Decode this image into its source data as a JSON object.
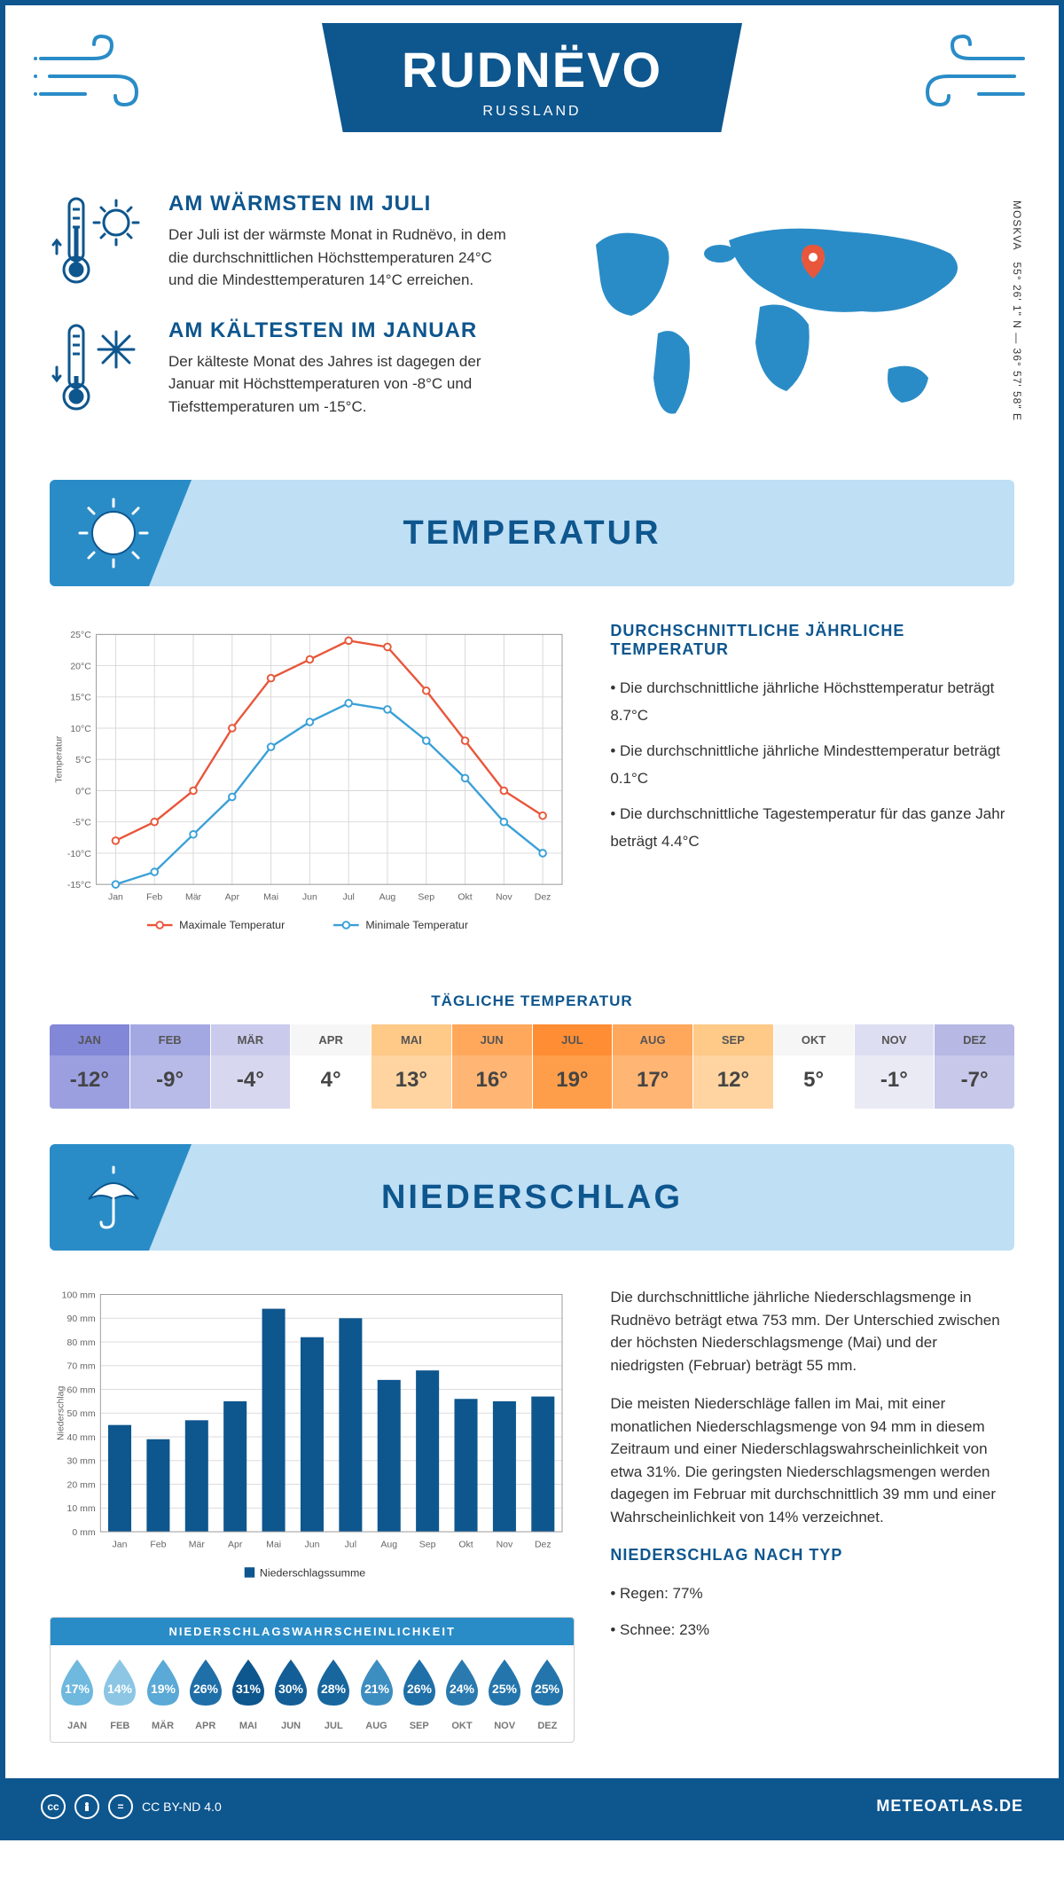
{
  "header": {
    "title": "RUDNËVO",
    "subtitle": "RUSSLAND"
  },
  "coords": {
    "text": "55° 26' 1\" N — 36° 57' 58\" E",
    "region": "MOSKVA"
  },
  "facts": {
    "warm": {
      "title": "AM WÄRMSTEN IM JULI",
      "text": "Der Juli ist der wärmste Monat in Rudnëvo, in dem die durchschnittlichen Höchsttemperaturen 24°C und die Mindesttemperaturen 14°C erreichen."
    },
    "cold": {
      "title": "AM KÄLTESTEN IM JANUAR",
      "text": "Der kälteste Monat des Jahres ist dagegen der Januar mit Höchsttemperaturen von -8°C und Tiefsttemperaturen um -15°C."
    }
  },
  "temp_section": {
    "banner": "TEMPERATUR",
    "chart": {
      "type": "line",
      "months": [
        "Jan",
        "Feb",
        "Mär",
        "Apr",
        "Mai",
        "Jun",
        "Jul",
        "Aug",
        "Sep",
        "Okt",
        "Nov",
        "Dez"
      ],
      "max_series": {
        "label": "Maximale Temperatur",
        "color": "#e8563b",
        "values": [
          -8,
          -5,
          0,
          10,
          18,
          21,
          24,
          23,
          16,
          8,
          0,
          -4
        ]
      },
      "min_series": {
        "label": "Minimale Temperatur",
        "color": "#3aa0d8",
        "values": [
          -15,
          -13,
          -7,
          -1,
          7,
          11,
          14,
          13,
          8,
          2,
          -5,
          -10
        ]
      },
      "ylim": [
        -15,
        25
      ],
      "ytick_step": 5,
      "ylabel": "Temperatur",
      "grid_color": "#d8d8d8",
      "background": "#ffffff",
      "marker": "circle",
      "marker_size": 4
    },
    "text": {
      "title": "DURCHSCHNITTLICHE JÄHRLICHE TEMPERATUR",
      "bullets": [
        "• Die durchschnittliche jährliche Höchsttemperatur beträgt 8.7°C",
        "• Die durchschnittliche jährliche Mindesttemperatur beträgt 0.1°C",
        "• Die durchschnittliche Tagestemperatur für das ganze Jahr beträgt 4.4°C"
      ]
    }
  },
  "daily_temp": {
    "title": "TÄGLICHE TEMPERATUR",
    "months": [
      "JAN",
      "FEB",
      "MÄR",
      "APR",
      "MAI",
      "JUN",
      "JUL",
      "AUG",
      "SEP",
      "OKT",
      "NOV",
      "DEZ"
    ],
    "values": [
      "-12°",
      "-9°",
      "-4°",
      "4°",
      "13°",
      "16°",
      "19°",
      "17°",
      "12°",
      "5°",
      "-1°",
      "-7°"
    ],
    "cell_colors": [
      "#9b9fe0",
      "#b8bbe8",
      "#d7d7f0",
      "#ffffff",
      "#ffd4a0",
      "#ffb574",
      "#ff9e4a",
      "#ffb574",
      "#ffd4a0",
      "#ffffff",
      "#eaeaf5",
      "#c8c8ea"
    ],
    "header_colors": [
      "#8287d8",
      "#a4a8e2",
      "#cacbec",
      "#f6f6f6",
      "#ffc988",
      "#ffa85c",
      "#ff8d33",
      "#ffa85c",
      "#ffc988",
      "#f6f6f6",
      "#dedef2",
      "#b7b8e4"
    ]
  },
  "precip_section": {
    "banner": "NIEDERSCHLAG",
    "chart": {
      "type": "bar",
      "months": [
        "Jan",
        "Feb",
        "Mär",
        "Apr",
        "Mai",
        "Jun",
        "Jul",
        "Aug",
        "Sep",
        "Okt",
        "Nov",
        "Dez"
      ],
      "values": [
        45,
        39,
        47,
        55,
        94,
        82,
        90,
        64,
        68,
        56,
        55,
        57
      ],
      "bar_color": "#0e568e",
      "ylim": [
        0,
        100
      ],
      "ytick_step": 10,
      "y_unit": "mm",
      "ylabel": "Niederschlag",
      "legend": "Niederschlagssumme",
      "grid_color": "#d8d8d8"
    },
    "text": {
      "p1": "Die durchschnittliche jährliche Niederschlagsmenge in Rudnëvo beträgt etwa 753 mm. Der Unterschied zwischen der höchsten Niederschlagsmenge (Mai) und der niedrigsten (Februar) beträgt 55 mm.",
      "p2": "Die meisten Niederschläge fallen im Mai, mit einer monatlichen Niederschlagsmenge von 94 mm in diesem Zeitraum und einer Niederschlagswahrscheinlichkeit von etwa 31%. Die geringsten Niederschlagsmengen werden dagegen im Februar mit durchschnittlich 39 mm und einer Wahrscheinlichkeit von 14% verzeichnet.",
      "type_title": "NIEDERSCHLAG NACH TYP",
      "type_bullets": [
        "• Regen: 77%",
        "• Schnee: 23%"
      ]
    },
    "prob": {
      "title": "NIEDERSCHLAGSWAHRSCHEINLICHKEIT",
      "months": [
        "JAN",
        "FEB",
        "MÄR",
        "APR",
        "MAI",
        "JUN",
        "JUL",
        "AUG",
        "SEP",
        "OKT",
        "NOV",
        "DEZ"
      ],
      "values": [
        "17%",
        "14%",
        "19%",
        "26%",
        "31%",
        "30%",
        "28%",
        "21%",
        "26%",
        "24%",
        "25%",
        "25%"
      ],
      "colors": [
        "#6fb8de",
        "#8cc6e4",
        "#5aa9d6",
        "#1f6fa8",
        "#0e568e",
        "#135e96",
        "#17669e",
        "#3d8ec0",
        "#1f6fa8",
        "#2a7ab0",
        "#2475ac",
        "#2475ac"
      ]
    }
  },
  "footer": {
    "license": "CC BY-ND 4.0",
    "site": "METEOATLAS.DE"
  },
  "colors": {
    "primary": "#0e568e",
    "light_blue": "#bfdff5",
    "mid_blue": "#2a8cc7",
    "accent_blue": "#3aa0d8"
  }
}
